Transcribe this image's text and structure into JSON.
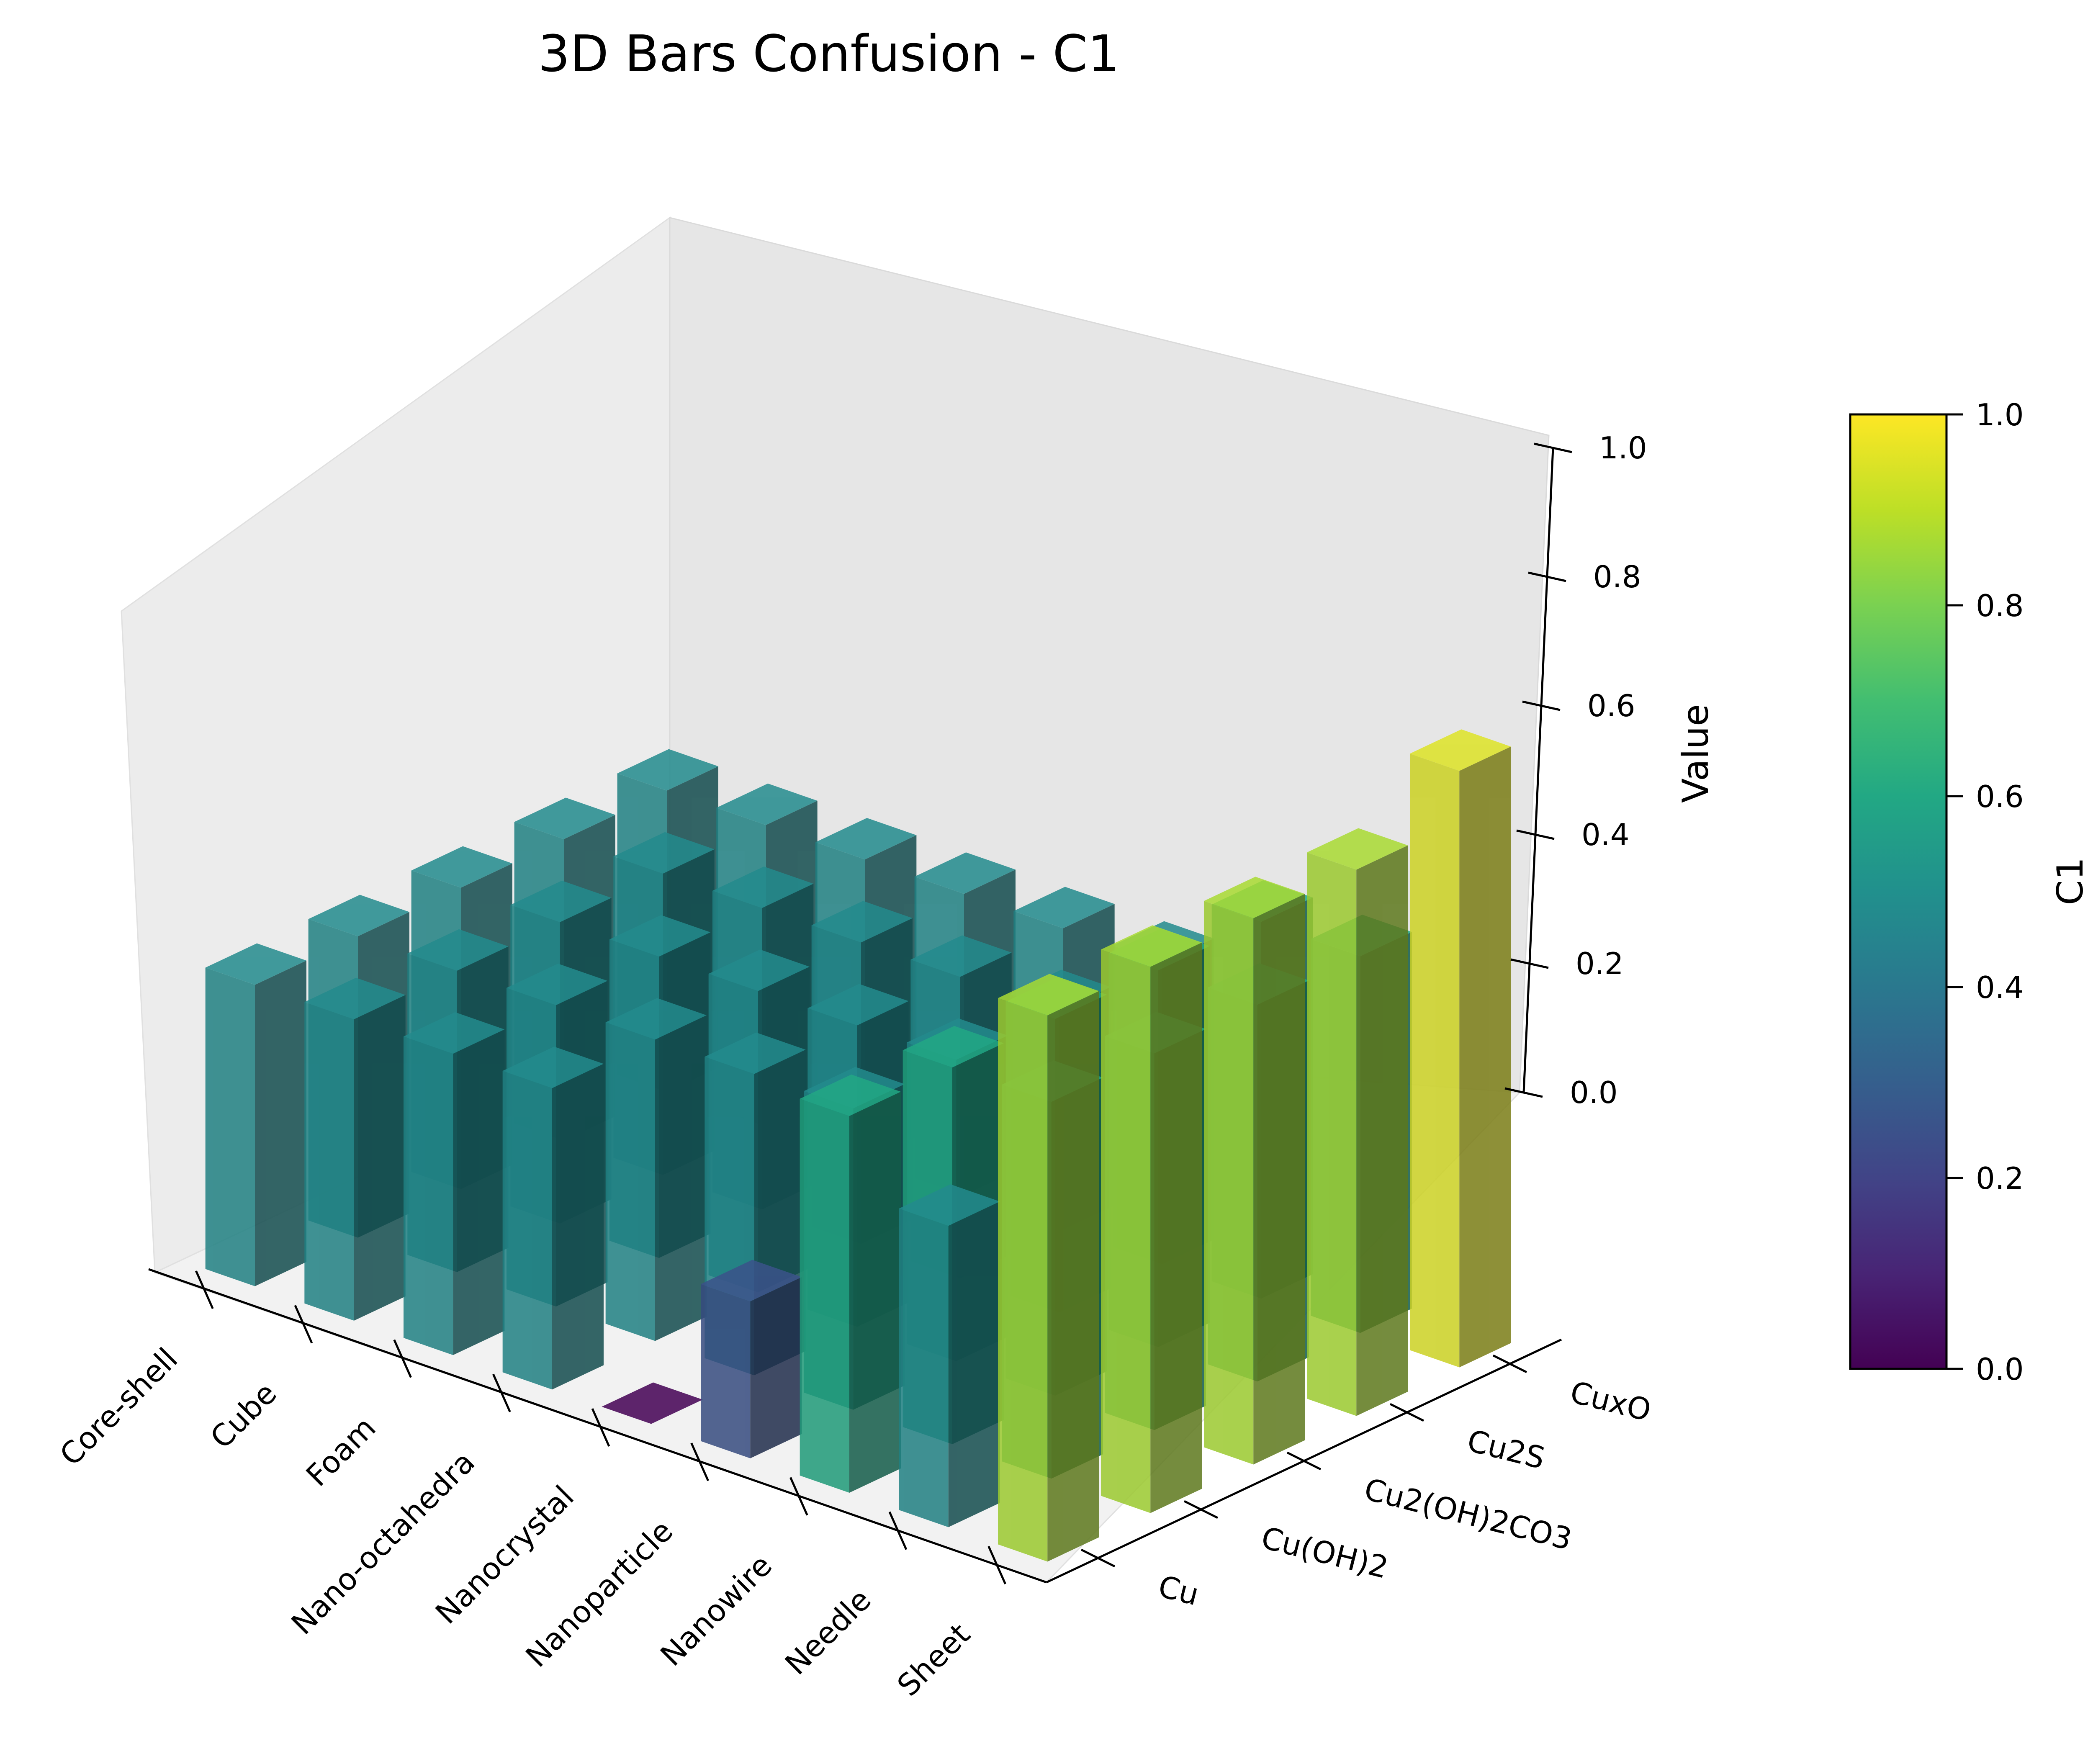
{
  "chart_data": {
    "type": "bar3d",
    "title": "3D Bars Confusion - C1",
    "x_categories": [
      "Core-shell",
      "Cube",
      "Foam",
      "Nano-octahedra",
      "Nanocrystal",
      "Nanoparticle",
      "Nanowire",
      "Needle",
      "Sheet"
    ],
    "y_categories": [
      "Cu",
      "Cu(OH)2",
      "Cu2(OH)2CO3",
      "Cu2S",
      "CuxO"
    ],
    "z_label": "Value",
    "z_lim": [
      0,
      1.0
    ],
    "z_ticks": [
      "0.0",
      "0.2",
      "0.4",
      "0.6",
      "0.8",
      "1.0"
    ],
    "colorbar": {
      "label": "C1",
      "colormap": "viridis",
      "range": [
        0,
        1.0
      ],
      "ticks": [
        "0.0",
        "0.2",
        "0.4",
        "0.6",
        "0.8",
        "1.0"
      ]
    },
    "values": [
      [
        0.48,
        0.48,
        0.48,
        0.48,
        0.48
      ],
      [
        0.48,
        0.48,
        0.48,
        0.48,
        0.48
      ],
      [
        0.48,
        0.48,
        0.48,
        0.48,
        0.48
      ],
      [
        0.48,
        0.48,
        0.48,
        0.48,
        0.48
      ],
      [
        0.0,
        0.48,
        0.48,
        0.48,
        0.48
      ],
      [
        0.25,
        0.48,
        0.48,
        0.48,
        0.48
      ],
      [
        0.6,
        0.6,
        0.6,
        0.6,
        0.6
      ],
      [
        0.48,
        0.6,
        0.6,
        0.6,
        0.6
      ],
      [
        0.87,
        0.87,
        0.87,
        0.87,
        0.95
      ]
    ]
  }
}
